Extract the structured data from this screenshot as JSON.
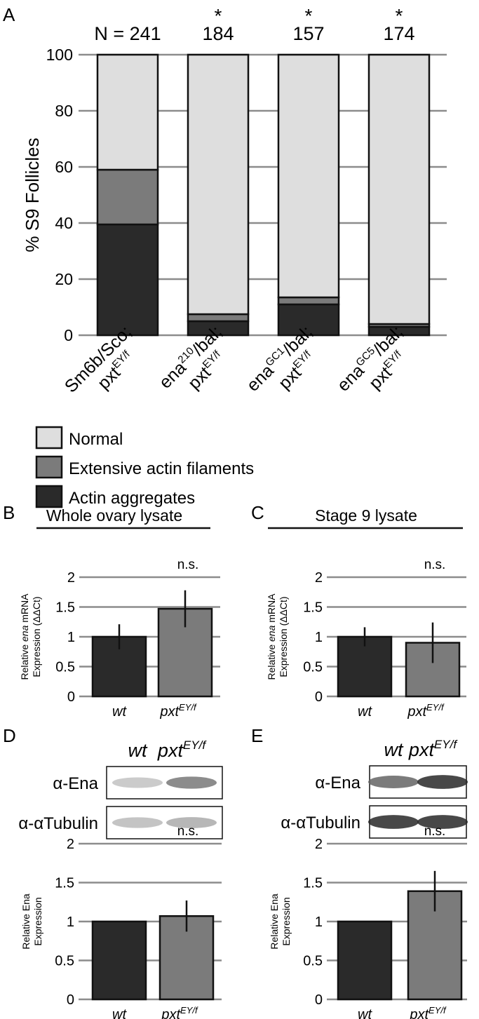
{
  "panels": {
    "A": "A",
    "B": "B",
    "C": "C",
    "D": "D",
    "E": "E"
  },
  "colors": {
    "normal": "#dedede",
    "extensive": "#7b7b7b",
    "aggregates": "#2a2a2a",
    "wt_bar": "#2a2a2a",
    "mut_bar": "#7b7b7b",
    "grid": "#8c8c8c"
  },
  "legend": [
    {
      "label": "Normal",
      "color": "#dedede"
    },
    {
      "label": "Extensive actin filaments",
      "color": "#7b7b7b"
    },
    {
      "label": "Actin aggregates",
      "color": "#2a2a2a"
    }
  ],
  "chart_data": [
    {
      "id": "A",
      "type": "bar",
      "stacked": true,
      "ylabel": "% S9 Follicles",
      "ylim": [
        0,
        100
      ],
      "yticks": [
        0,
        20,
        40,
        60,
        80,
        100
      ],
      "grid": true,
      "categories": [
        {
          "line1": "Sm6b/Sco;",
          "line1_sup": "",
          "line1_rest": "",
          "line2": "pxt",
          "line2_sup": "EY/f"
        },
        {
          "line1": "ena",
          "line1_sup": "210",
          "line1_rest": "/bal;",
          "line2": "pxt",
          "line2_sup": "EY/f"
        },
        {
          "line1": "ena",
          "line1_sup": "GC1",
          "line1_rest": "/bal;",
          "line2": "pxt",
          "line2_sup": "EY/f"
        },
        {
          "line1": "ena",
          "line1_sup": "GC5",
          "line1_rest": "/bal;",
          "line2": "pxt",
          "line2_sup": "EY/f"
        }
      ],
      "n_labels": [
        "N = 241",
        "184",
        "157",
        "174"
      ],
      "significance": [
        "",
        "*",
        "*",
        "*"
      ],
      "series": [
        {
          "name": "Actin aggregates",
          "values": [
            39.5,
            5,
            11,
            3
          ]
        },
        {
          "name": "Extensive actin filaments",
          "values": [
            19.5,
            2.5,
            2.5,
            1
          ]
        },
        {
          "name": "Normal",
          "values": [
            41,
            92.5,
            86.5,
            96
          ]
        }
      ]
    },
    {
      "id": "B",
      "type": "bar",
      "title": "Whole ovary lysate",
      "ylabel_line1_pre": "Relative ",
      "ylabel_line1_it": "ena",
      "ylabel_line1_post": " mRNA",
      "ylabel_line2": "Expression (ΔΔCt)",
      "ylim": [
        0,
        2
      ],
      "yticks": [
        "0",
        "0.5",
        "1",
        "1.5",
        "2"
      ],
      "categories": [
        {
          "main": "wt",
          "sup": ""
        },
        {
          "main": "pxt",
          "sup": "EY/f"
        }
      ],
      "values": [
        1.0,
        1.47
      ],
      "errors": [
        0.21,
        0.31
      ],
      "annotation": "n.s."
    },
    {
      "id": "C",
      "type": "bar",
      "title": "Stage 9 lysate",
      "ylabel_line1_pre": "Relative ",
      "ylabel_line1_it": "ena",
      "ylabel_line1_post": " mRNA",
      "ylabel_line2": "Expression (ΔΔCt)",
      "ylim": [
        0,
        2
      ],
      "yticks": [
        "0",
        "0.5",
        "1",
        "1.5",
        "2"
      ],
      "categories": [
        {
          "main": "wt",
          "sup": ""
        },
        {
          "main": "pxt",
          "sup": "EY/f"
        }
      ],
      "values": [
        1.0,
        0.9
      ],
      "errors": [
        0.16,
        0.34
      ],
      "annotation": "n.s."
    },
    {
      "id": "D",
      "type": "bar",
      "ylabel_line1": "Relative Ena",
      "ylabel_line2": "Expression",
      "ylim": [
        0,
        2
      ],
      "yticks": [
        "0",
        "0.5",
        "1",
        "1.5",
        "2"
      ],
      "categories": [
        {
          "main": "wt",
          "sup": ""
        },
        {
          "main": "pxt",
          "sup": "EY/f"
        }
      ],
      "values": [
        1.0,
        1.07
      ],
      "errors": [
        0,
        0.2
      ],
      "annotation": "n.s."
    },
    {
      "id": "E",
      "type": "bar",
      "ylabel_line1": "Relative Ena",
      "ylabel_line2": "Expression",
      "ylim": [
        0,
        2
      ],
      "yticks": [
        "0",
        "0.5",
        "1",
        "1.5",
        "2"
      ],
      "categories": [
        {
          "main": "wt",
          "sup": ""
        },
        {
          "main": "pxt",
          "sup": "EY/f"
        }
      ],
      "values": [
        1.0,
        1.39
      ],
      "errors": [
        0,
        0.26
      ],
      "annotation": "n.s."
    }
  ],
  "blots": {
    "D": {
      "lanes": [
        {
          "main": "wt",
          "sup": ""
        },
        {
          "main": "pxt",
          "sup": "EY/f"
        }
      ],
      "rows": [
        {
          "label": "α-Ena",
          "intensities": [
            0.18,
            0.55
          ]
        },
        {
          "label": "α-αTubulin",
          "intensities": [
            0.22,
            0.3
          ]
        }
      ]
    },
    "E": {
      "lanes": [
        {
          "main": "wt",
          "sup": ""
        },
        {
          "main": "pxt",
          "sup": "EY/f"
        }
      ],
      "rows": [
        {
          "label": "α-Ena",
          "intensities": [
            0.65,
            0.95
          ]
        },
        {
          "label": "α-αTubulin",
          "intensities": [
            0.95,
            0.95
          ]
        }
      ]
    }
  }
}
